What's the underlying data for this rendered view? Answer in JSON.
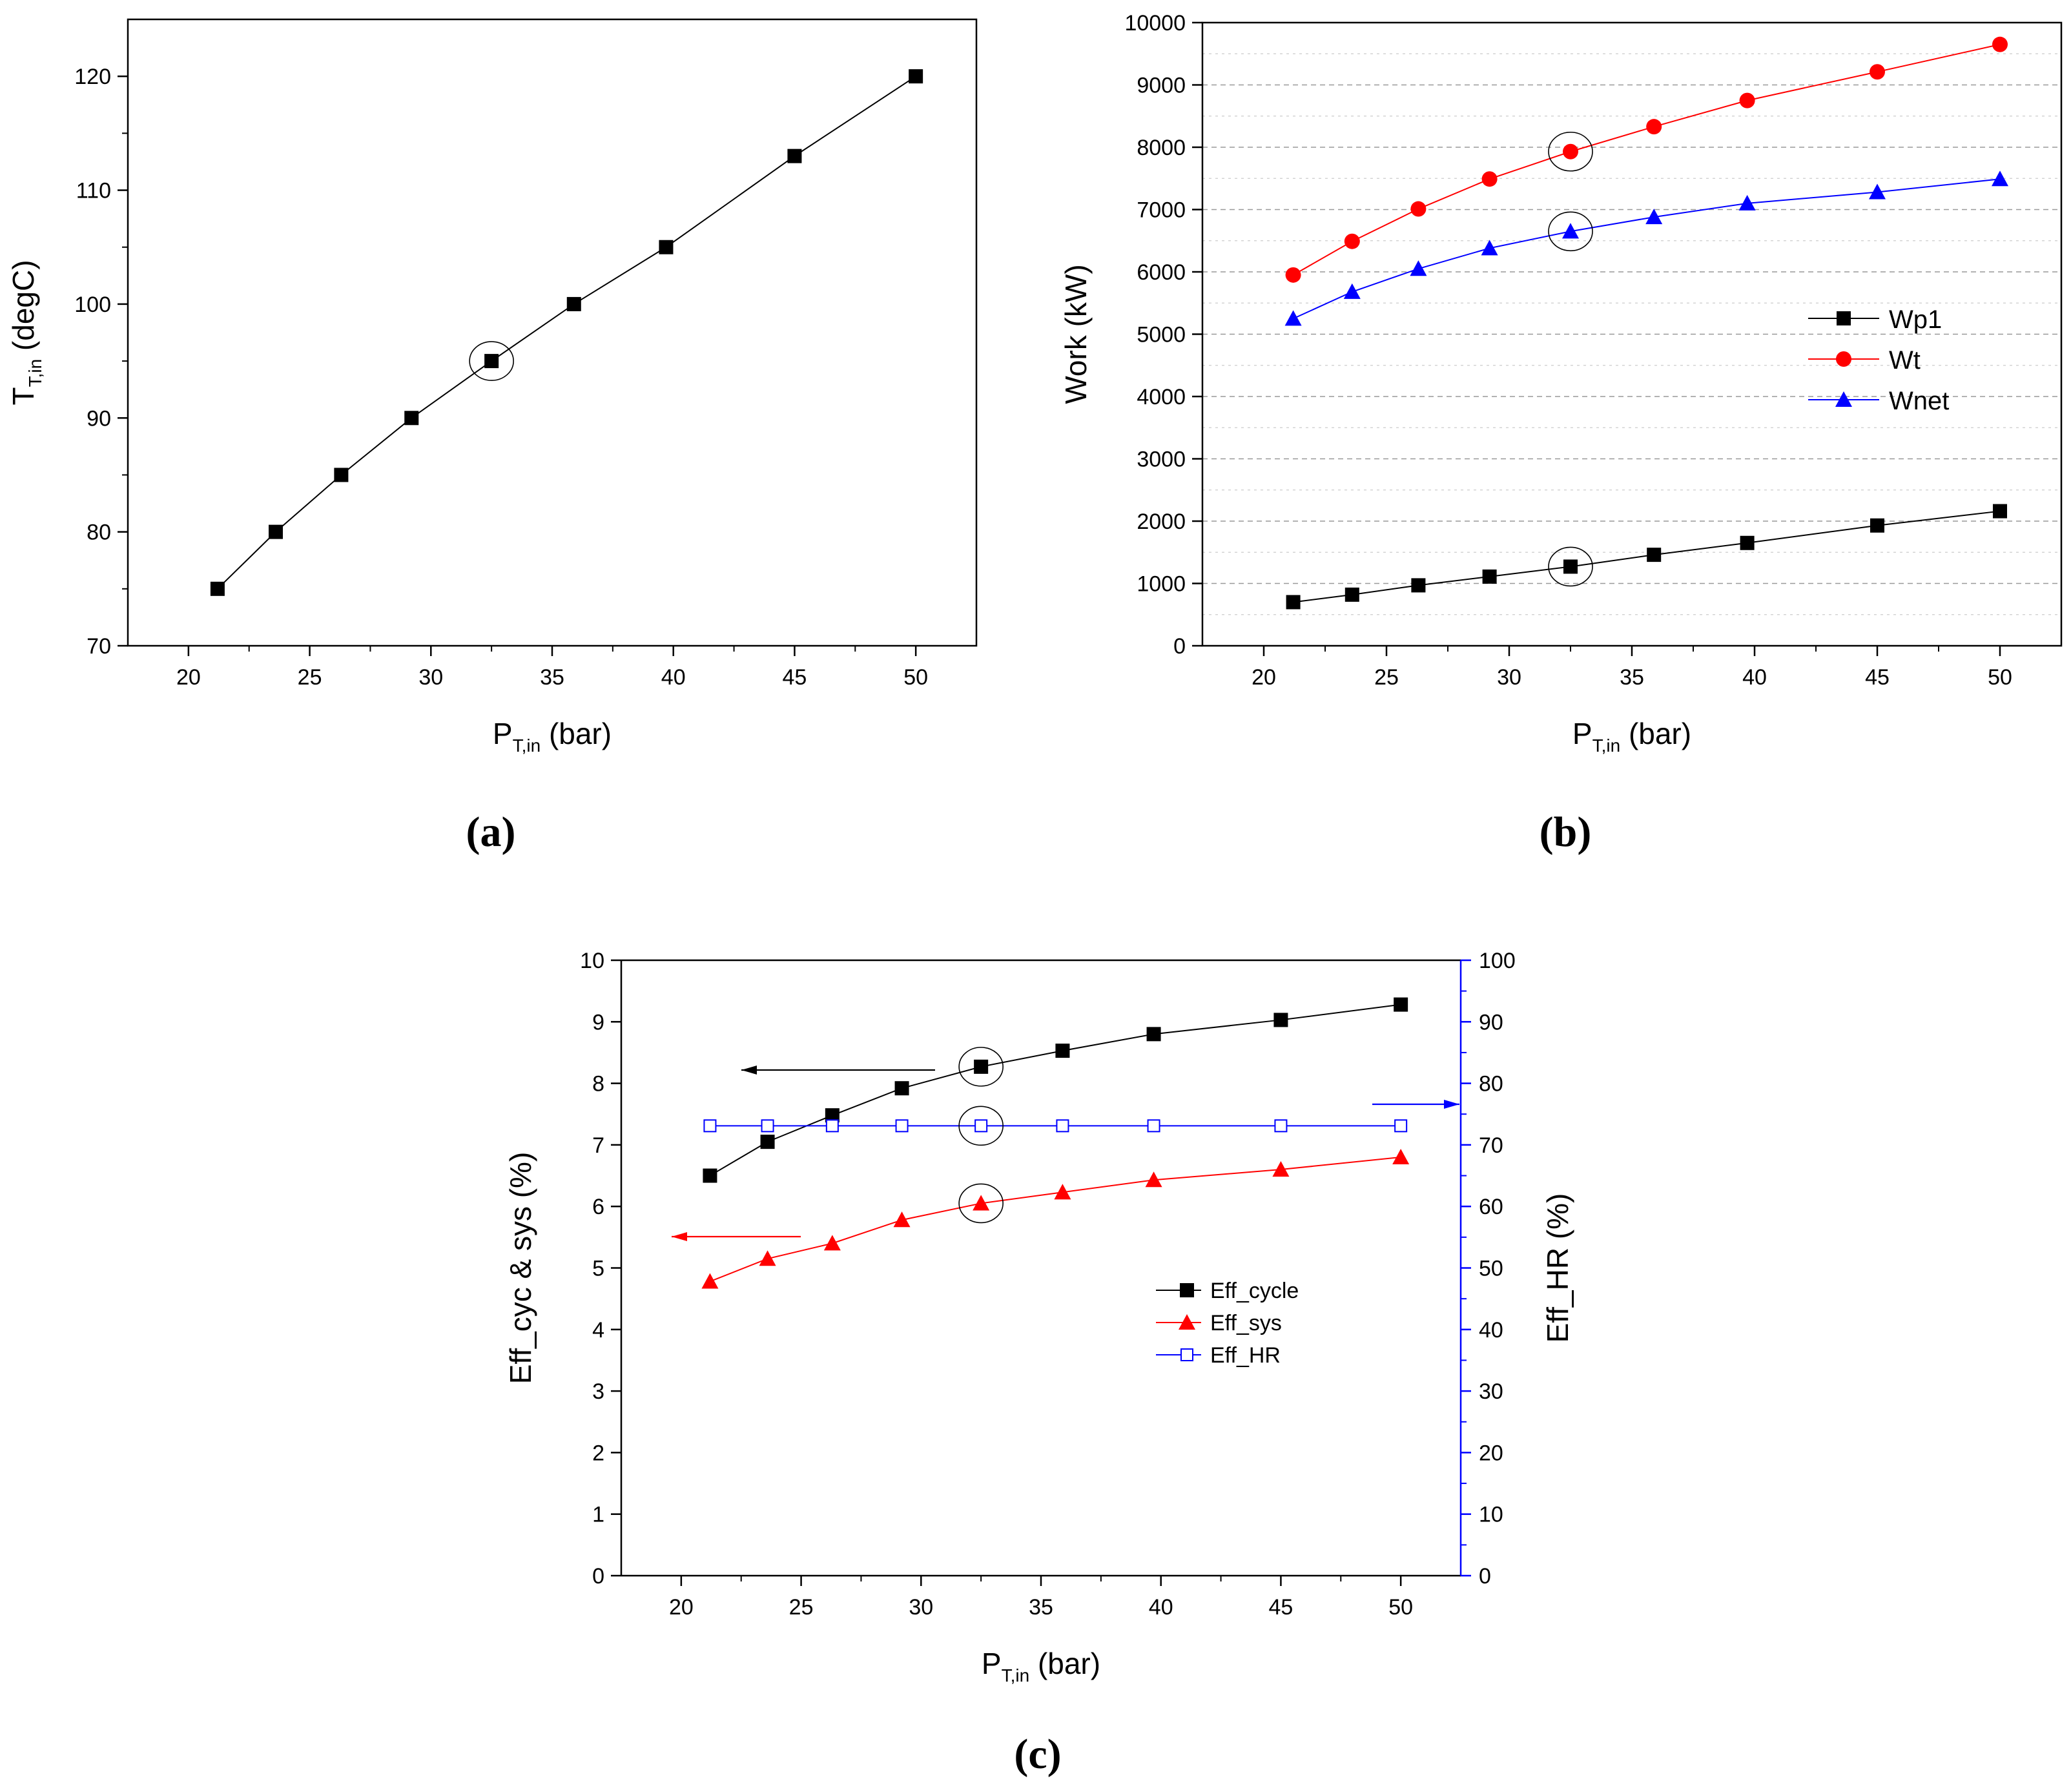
{
  "figure": {
    "panel_labels": [
      "(a)",
      "(b)",
      "(c)"
    ]
  },
  "chart_data": [
    {
      "id": "a",
      "type": "line",
      "x": [
        21.2,
        23.6,
        26.3,
        29.2,
        32.5,
        35.9,
        39.7,
        45.0,
        50.0
      ],
      "series": [
        {
          "name": "T_T,in",
          "values": [
            75,
            80,
            85,
            90,
            95,
            100,
            105,
            113,
            120
          ],
          "color": "#000000",
          "marker": "square"
        }
      ],
      "xlabel_main": "P",
      "xlabel_sub": "T,in",
      "xlabel_unit": " (bar)",
      "ylabel_main": "T",
      "ylabel_sub": "T,in",
      "ylabel_unit": " (degC)",
      "xlim": [
        17.5,
        52.5
      ],
      "ylim": [
        70,
        125
      ],
      "xticks": [
        20,
        25,
        30,
        35,
        40,
        45,
        50
      ],
      "yticks": [
        70,
        80,
        90,
        100,
        110,
        120
      ],
      "highlight_index": 4,
      "grid": false
    },
    {
      "id": "b",
      "type": "line",
      "x": [
        21.2,
        23.6,
        26.3,
        29.2,
        32.5,
        35.9,
        39.7,
        45.0,
        50.0
      ],
      "series": [
        {
          "name": "Wp1",
          "values": [
            700,
            820,
            970,
            1110,
            1270,
            1460,
            1650,
            1930,
            2160
          ],
          "color": "#000000",
          "marker": "square"
        },
        {
          "name": "Wt",
          "values": [
            5950,
            6490,
            7010,
            7490,
            7930,
            8330,
            8750,
            9210,
            9650
          ],
          "color": "#ff0000",
          "marker": "circle"
        },
        {
          "name": "Wnet",
          "values": [
            5250,
            5680,
            6050,
            6380,
            6650,
            6880,
            7100,
            7280,
            7490
          ],
          "color": "#0000ff",
          "marker": "triangle"
        }
      ],
      "legend": [
        "Wp1",
        "Wt",
        "Wnet"
      ],
      "legend_position": "center-right",
      "xlabel_main": "P",
      "xlabel_sub": "T,in",
      "xlabel_unit": " (bar)",
      "ylabel": "Work (kW)",
      "xlim": [
        17.5,
        52.5
      ],
      "ylim": [
        0,
        10000
      ],
      "xticks": [
        20,
        25,
        30,
        35,
        40,
        45,
        50
      ],
      "yticks": [
        0,
        1000,
        2000,
        3000,
        4000,
        5000,
        6000,
        7000,
        8000,
        9000,
        10000
      ],
      "highlight_index": 4,
      "grid": true
    },
    {
      "id": "c",
      "type": "line",
      "x": [
        21.2,
        23.6,
        26.3,
        29.2,
        32.5,
        35.9,
        39.7,
        45.0,
        50.0
      ],
      "series": [
        {
          "name": "Eff_cycle",
          "axis": "left",
          "values": [
            6.5,
            7.05,
            7.48,
            7.92,
            8.27,
            8.53,
            8.8,
            9.03,
            9.28
          ],
          "color": "#000000",
          "marker": "square"
        },
        {
          "name": "Eff_sys",
          "axis": "left",
          "values": [
            4.78,
            5.15,
            5.4,
            5.78,
            6.05,
            6.23,
            6.43,
            6.6,
            6.8
          ],
          "color": "#ff0000",
          "marker": "triangle"
        },
        {
          "name": "Eff_HR",
          "axis": "right",
          "values": [
            73.1,
            73.1,
            73.1,
            73.1,
            73.1,
            73.1,
            73.1,
            73.1,
            73.1
          ],
          "color": "#0000ff",
          "marker": "open-square"
        }
      ],
      "legend": [
        "Eff_cycle",
        "Eff_sys",
        "Eff_HR"
      ],
      "legend_position": "center",
      "xlabel_main": "P",
      "xlabel_sub": "T,in",
      "xlabel_unit": " (bar)",
      "ylabel_left": "Eff_cyc & sys (%)",
      "ylabel_right": "Eff_HR (%)",
      "xlim": [
        17.5,
        52.5
      ],
      "ylim_left": [
        0,
        10
      ],
      "ylim_right": [
        0,
        100
      ],
      "xticks": [
        20,
        25,
        30,
        35,
        40,
        45,
        50
      ],
      "yticks_left": [
        0,
        1,
        2,
        3,
        4,
        5,
        6,
        7,
        8,
        9,
        10
      ],
      "yticks_right": [
        0,
        10,
        20,
        30,
        40,
        50,
        60,
        70,
        80,
        90,
        100
      ],
      "highlight_index": 4,
      "annotations": [
        {
          "series": "Eff_cycle",
          "arrow": "left"
        },
        {
          "series": "Eff_sys",
          "arrow": "left"
        },
        {
          "series": "Eff_HR",
          "arrow": "right"
        }
      ],
      "grid": false
    }
  ]
}
